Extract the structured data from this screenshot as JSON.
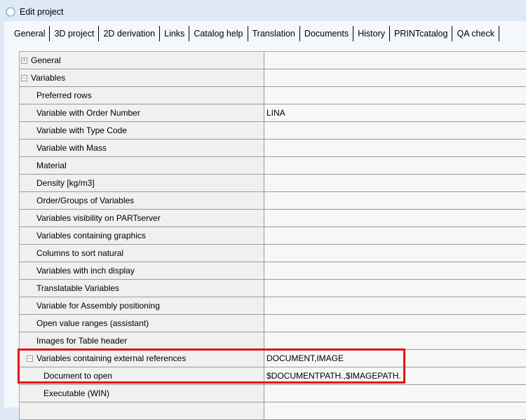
{
  "window": {
    "title": "Edit project"
  },
  "tabs": [
    "General",
    "3D project",
    "2D derivation",
    "Links",
    "Catalog help",
    "Translation",
    "Documents",
    "History",
    "PRINTcatalog",
    "QA check"
  ],
  "rows": [
    {
      "label": "General",
      "value": "",
      "type": "cat",
      "toggle": "+"
    },
    {
      "label": "Variables",
      "value": "",
      "type": "cat",
      "toggle": "−"
    },
    {
      "label": "Preferred rows",
      "value": ""
    },
    {
      "label": "Variable with Order Number",
      "value": "LINA"
    },
    {
      "label": "Variable with Type Code",
      "value": ""
    },
    {
      "label": "Variable with Mass",
      "value": ""
    },
    {
      "label": "Material",
      "value": ""
    },
    {
      "label": "Density [kg/m3]",
      "value": ""
    },
    {
      "label": "Order/Groups of Variables",
      "value": ""
    },
    {
      "label": "Variables visibility on PARTserver",
      "value": ""
    },
    {
      "label": "Variables containing graphics",
      "value": ""
    },
    {
      "label": "Columns to sort natural",
      "value": ""
    },
    {
      "label": "Variables with inch display",
      "value": ""
    },
    {
      "label": "Translatable Variables",
      "value": ""
    },
    {
      "label": "Variable for Assembly positioning",
      "value": ""
    },
    {
      "label": "Open value ranges (assistant)",
      "value": ""
    },
    {
      "label": "Images for Table header",
      "value": ""
    },
    {
      "label": "Variables containing external references",
      "value": "DOCUMENT,IMAGE",
      "type": "subcat",
      "toggle": "−"
    },
    {
      "label": "Document to open",
      "value": "$DOCUMENTPATH.,$IMAGEPATH.",
      "type": "sub"
    },
    {
      "label": "Executable (WIN)",
      "value": "",
      "type": "sub"
    },
    {
      "label": "",
      "value": "",
      "type": "sub"
    }
  ],
  "highlight_color": "#e4121a"
}
